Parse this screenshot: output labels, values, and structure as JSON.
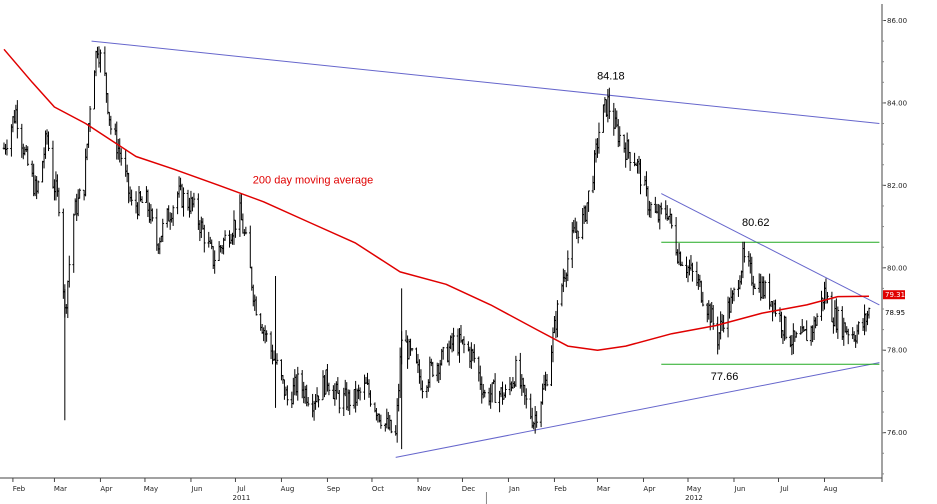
{
  "chart_data": {
    "type": "line",
    "style": "daily price bars (OHLC)",
    "x_range": [
      "2011-01-26",
      "2012-08-31"
    ],
    "ylim": [
      74.9,
      86.4
    ],
    "y_ticks": [
      "86.00",
      "84.00",
      "82.00",
      "80.00",
      "78.00",
      "76.00"
    ],
    "month_ticks": [
      {
        "label": "Feb",
        "date": "2011-02-01"
      },
      {
        "label": "Mar",
        "date": "2011-03-01"
      },
      {
        "label": "Apr",
        "date": "2011-04-01"
      },
      {
        "label": "May",
        "date": "2011-05-01"
      },
      {
        "label": "Jun",
        "date": "2011-06-01"
      },
      {
        "label": "Jul",
        "date": "2011-07-01"
      },
      {
        "label": "Aug",
        "date": "2011-08-01"
      },
      {
        "label": "Sep",
        "date": "2011-09-01"
      },
      {
        "label": "Oct",
        "date": "2011-10-01"
      },
      {
        "label": "Nov",
        "date": "2011-11-01"
      },
      {
        "label": "Dec",
        "date": "2011-12-01"
      },
      {
        "label": "Jan",
        "date": "2012-01-01"
      },
      {
        "label": "Feb",
        "date": "2012-02-01"
      },
      {
        "label": "Mar",
        "date": "2012-03-01"
      },
      {
        "label": "Apr",
        "date": "2012-04-01"
      },
      {
        "label": "May",
        "date": "2012-05-01"
      },
      {
        "label": "Jun",
        "date": "2012-06-01"
      },
      {
        "label": "Jul",
        "date": "2012-07-01"
      },
      {
        "label": "Aug",
        "date": "2012-08-01"
      }
    ],
    "year_labels": [
      {
        "label": "2011",
        "date": "2011-07-01"
      },
      {
        "label": "2012",
        "date": "2012-05-01"
      }
    ],
    "series": [
      {
        "name": "price",
        "color": "#000000",
        "points": [
          [
            "2011-01-26",
            82.9
          ],
          [
            "2011-02-03",
            83.8
          ],
          [
            "2011-02-10",
            82.6
          ],
          [
            "2011-02-17",
            81.8
          ],
          [
            "2011-02-24",
            83.2
          ],
          [
            "2011-02-28",
            82.1
          ],
          [
            "2011-03-04",
            81.6
          ],
          [
            "2011-03-08",
            78.9
          ],
          [
            "2011-03-14",
            81.3
          ],
          [
            "2011-03-21",
            82.0
          ],
          [
            "2011-03-26",
            84.5
          ],
          [
            "2011-03-30",
            85.4
          ],
          [
            "2011-04-04",
            84.6
          ],
          [
            "2011-04-08",
            83.4
          ],
          [
            "2011-04-15",
            82.7
          ],
          [
            "2011-04-22",
            81.5
          ],
          [
            "2011-05-02",
            81.6
          ],
          [
            "2011-05-09",
            80.6
          ],
          [
            "2011-05-16",
            81.2
          ],
          [
            "2011-05-23",
            81.8
          ],
          [
            "2011-06-02",
            81.5
          ],
          [
            "2011-06-10",
            80.8
          ],
          [
            "2011-06-16",
            80.2
          ],
          [
            "2011-06-24",
            80.7
          ],
          [
            "2011-07-04",
            81.3
          ],
          [
            "2011-07-08",
            80.6
          ],
          [
            "2011-07-14",
            79.2
          ],
          [
            "2011-07-22",
            78.3
          ],
          [
            "2011-07-29",
            77.6
          ],
          [
            "2011-08-05",
            76.8
          ],
          [
            "2011-08-12",
            77.2
          ],
          [
            "2011-08-22",
            76.8
          ],
          [
            "2011-09-01",
            77.3
          ],
          [
            "2011-09-09",
            76.8
          ],
          [
            "2011-09-19",
            76.8
          ],
          [
            "2011-09-27",
            77.1
          ],
          [
            "2011-10-04",
            76.6
          ],
          [
            "2011-10-10",
            76.2
          ],
          [
            "2011-10-17",
            75.9
          ],
          [
            "2011-10-21",
            78.3
          ],
          [
            "2011-10-28",
            77.8
          ],
          [
            "2011-11-04",
            77.2
          ],
          [
            "2011-11-11",
            77.6
          ],
          [
            "2011-11-18",
            77.8
          ],
          [
            "2011-11-25",
            78.2
          ],
          [
            "2011-12-02",
            78.1
          ],
          [
            "2011-12-09",
            77.8
          ],
          [
            "2011-12-16",
            76.9
          ],
          [
            "2011-12-23",
            77.0
          ],
          [
            "2011-12-30",
            76.9
          ],
          [
            "2012-01-06",
            77.5
          ],
          [
            "2012-01-12",
            76.8
          ],
          [
            "2012-01-18",
            76.3
          ],
          [
            "2012-01-26",
            77.2
          ],
          [
            "2012-01-31",
            78.3
          ],
          [
            "2012-02-07",
            79.8
          ],
          [
            "2012-02-14",
            80.8
          ],
          [
            "2012-02-21",
            81.2
          ],
          [
            "2012-02-28",
            82.5
          ],
          [
            "2012-03-03",
            83.6
          ],
          [
            "2012-03-08",
            84.0
          ],
          [
            "2012-03-13",
            83.4
          ],
          [
            "2012-03-20",
            82.9
          ],
          [
            "2012-03-27",
            82.6
          ],
          [
            "2012-04-04",
            81.6
          ],
          [
            "2012-04-10",
            81.2
          ],
          [
            "2012-04-17",
            81.4
          ],
          [
            "2012-04-24",
            80.4
          ],
          [
            "2012-05-01",
            80.0
          ],
          [
            "2012-05-08",
            79.6
          ],
          [
            "2012-05-15",
            79.0
          ],
          [
            "2012-05-21",
            78.3
          ],
          [
            "2012-05-25",
            78.8
          ],
          [
            "2012-05-31",
            79.2
          ],
          [
            "2012-06-07",
            80.2
          ],
          [
            "2012-06-13",
            79.8
          ],
          [
            "2012-06-20",
            79.5
          ],
          [
            "2012-06-27",
            79.2
          ],
          [
            "2012-07-04",
            78.6
          ],
          [
            "2012-07-11",
            78.2
          ],
          [
            "2012-07-18",
            78.3
          ],
          [
            "2012-07-25",
            78.6
          ],
          [
            "2012-08-01",
            79.4
          ],
          [
            "2012-08-06",
            78.9
          ],
          [
            "2012-08-13",
            78.6
          ],
          [
            "2012-08-21",
            78.4
          ],
          [
            "2012-08-27",
            78.6
          ],
          [
            "2012-08-31",
            78.95
          ]
        ]
      },
      {
        "name": "200 day moving average",
        "color": "#e00000",
        "points": [
          [
            "2011-01-26",
            85.3
          ],
          [
            "2011-02-14",
            84.5
          ],
          [
            "2011-03-01",
            83.9
          ],
          [
            "2011-03-22",
            83.5
          ],
          [
            "2011-04-08",
            83.1
          ],
          [
            "2011-04-25",
            82.7
          ],
          [
            "2011-05-20",
            82.4
          ],
          [
            "2011-06-20",
            82.0
          ],
          [
            "2011-07-20",
            81.6
          ],
          [
            "2011-08-20",
            81.1
          ],
          [
            "2011-09-20",
            80.6
          ],
          [
            "2011-10-20",
            79.9
          ],
          [
            "2011-11-20",
            79.6
          ],
          [
            "2011-12-20",
            79.1
          ],
          [
            "2012-01-20",
            78.5
          ],
          [
            "2012-02-10",
            78.1
          ],
          [
            "2012-03-01",
            78.0
          ],
          [
            "2012-03-20",
            78.1
          ],
          [
            "2012-04-20",
            78.4
          ],
          [
            "2012-05-20",
            78.6
          ],
          [
            "2012-06-20",
            78.9
          ],
          [
            "2012-07-20",
            79.1
          ],
          [
            "2012-08-10",
            79.3
          ],
          [
            "2012-08-31",
            79.31
          ]
        ]
      }
    ],
    "trendlines": [
      {
        "color": "#6666cc",
        "from": [
          "2011-03-26",
          85.5
        ],
        "to": [
          "2012-09-07",
          83.5
        ]
      },
      {
        "color": "#6666cc",
        "from": [
          "2011-10-17",
          75.4
        ],
        "to": [
          "2012-09-07",
          77.7
        ]
      },
      {
        "color": "#6666cc",
        "from": [
          "2012-04-13",
          81.8
        ],
        "to": [
          "2012-09-07",
          79.1
        ]
      }
    ],
    "horizontal_lines": [
      {
        "color": "#22aa22",
        "y": 80.62,
        "from": "2012-04-13",
        "to": "2012-09-07"
      },
      {
        "color": "#22aa22",
        "y": 77.66,
        "from": "2012-04-13",
        "to": "2012-09-07"
      }
    ],
    "annotations": [
      {
        "text": "84.18",
        "x": "2012-03-10",
        "y": 84.18
      },
      {
        "text": "80.62",
        "x": "2012-06-13",
        "y": 80.62
      },
      {
        "text": "77.66",
        "x": "2012-05-27",
        "y": 77.66
      }
    ],
    "series_label": {
      "text": "200 day moving average",
      "x": "2011-07-10",
      "y": 82.0
    },
    "last_values": [
      {
        "text": "79.31",
        "value": 79.31,
        "color": "#e00000"
      },
      {
        "text": "78.95",
        "value": 78.95,
        "color": "#000000"
      }
    ]
  }
}
